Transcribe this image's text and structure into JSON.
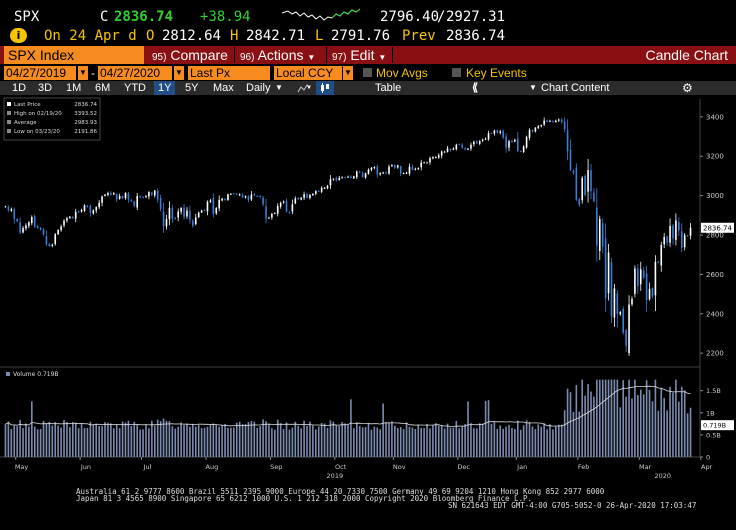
{
  "quote": {
    "ticker": "SPX",
    "last_label": "C",
    "last_value": "2836.74",
    "change": "+38.94",
    "range_low": "2796.40",
    "range_sep": "/",
    "range_high": "2927.31",
    "date_line": "On 24 Apr d",
    "open_label": "O",
    "open_value": "2812.64",
    "high_label": "H",
    "high_value": "2842.71",
    "low_label": "L",
    "low_value": "2791.76",
    "prev_label": "Prev",
    "prev_value": "2836.74",
    "icon_text": "i"
  },
  "titlebar": {
    "index_label": "SPX Index",
    "compare_num": "95)",
    "compare_label": "Compare",
    "actions_num": "96)",
    "actions_label": "Actions",
    "edit_num": "97)",
    "edit_label": "Edit",
    "right_label": "Candle Chart"
  },
  "daterow": {
    "start_date": "04/27/2019",
    "dash": "-",
    "end_date": "04/27/2020",
    "price_field": "Last Px",
    "currency": "Local CCY",
    "mov_avgs": "Mov Avgs",
    "key_events": "Key Events"
  },
  "toolbar": {
    "periods": [
      "1D",
      "3D",
      "1M",
      "6M",
      "YTD",
      "1Y",
      "5Y",
      "Max"
    ],
    "active_period": "1Y",
    "frequency": "Daily",
    "table": "Table",
    "chart_content": "Chart Content"
  },
  "colors": {
    "up": "#ffffff",
    "down": "#3c7fd6",
    "orange": "#f68b1f",
    "titlebar": "#8a0f12",
    "volume": "#7b8bb0"
  },
  "chart_data": {
    "type": "candlestick",
    "legend": {
      "last_price_label": "Last Price",
      "last_price": "2836.74",
      "high_label": "High on 02/19/20",
      "high": "3393.52",
      "average_label": "Average",
      "average": "2983.93",
      "low_label": "Low on 03/23/20",
      "low": "2191.86"
    },
    "y_ticks": [
      "3400",
      "3200",
      "3000",
      "2800",
      "2600",
      "2400",
      "2200"
    ],
    "ylim": [
      2150,
      3450
    ],
    "last_price_tag": "2836.74",
    "x_ticks": [
      "May",
      "Jun",
      "Jul",
      "Aug",
      "Sep",
      "Oct",
      "Nov",
      "Dec",
      "Jan",
      "Feb",
      "Mar",
      "Apr"
    ],
    "year_labels": [
      "2019",
      "2020"
    ],
    "closes": [
      2945,
      2926,
      2932,
      2881,
      2870,
      2812,
      2836,
      2849,
      2864,
      2891,
      2842,
      2835,
      2826,
      2803,
      2752,
      2744,
      2751,
      2804,
      2826,
      2843,
      2873,
      2886,
      2892,
      2886,
      2917,
      2918,
      2927,
      2950,
      2945,
      2913,
      2925,
      2942,
      2964,
      2996,
      3005,
      3013,
      3004,
      3014,
      2981,
      2998,
      2987,
      3014,
      2981,
      2970,
      2948,
      2998,
      2992,
      2991,
      2997,
      3019,
      3003,
      3026,
      2980,
      2932,
      2844,
      2881,
      2938,
      2884,
      2882,
      2919,
      2938,
      2891,
      2924,
      2878,
      2847,
      2889,
      2914,
      2924,
      2922,
      2969,
      2976,
      2906,
      2937,
      2978,
      2985,
      2979,
      3007,
      3009,
      3011,
      3005,
      3007,
      2992,
      2997,
      2977,
      3005,
      3001,
      2997,
      2993,
      2955,
      2884,
      2888,
      2908,
      2911,
      2947,
      2963,
      2970,
      2919,
      2915,
      2956,
      2986,
      2982,
      2990,
      3007,
      2988,
      3004,
      3009,
      3023,
      3023,
      3040,
      3040,
      3050,
      3083,
      3086,
      3078,
      3090,
      3093,
      3091,
      3096,
      3090,
      3098,
      3122,
      3120,
      3094,
      3113,
      3132,
      3141,
      3145,
      3108,
      3115,
      3117,
      3112,
      3147,
      3154,
      3141,
      3154,
      3112,
      3114,
      3117,
      3147,
      3132,
      3136,
      3140,
      3168,
      3169,
      3168,
      3191,
      3195,
      3196,
      3205,
      3224,
      3223,
      3240,
      3231,
      3239,
      3259,
      3260,
      3244,
      3235,
      3238,
      3258,
      3274,
      3265,
      3277,
      3284,
      3289,
      3316,
      3317,
      3330,
      3320,
      3326,
      3295,
      3243,
      3276,
      3273,
      3283,
      3226,
      3225,
      3249,
      3298,
      3334,
      3327,
      3345,
      3352,
      3358,
      3381,
      3374,
      3380,
      3373,
      3380,
      3386,
      3373,
      3338,
      3225,
      3128,
      3116,
      2979,
      2954,
      3090,
      3003,
      3130,
      3023,
      2972,
      2746,
      2882,
      2741,
      2480,
      2711,
      2386,
      2529,
      2398,
      2409,
      2304,
      2237,
      2447,
      2475,
      2630,
      2541,
      2626,
      2584,
      2470,
      2527,
      2488,
      2664,
      2659,
      2749,
      2790,
      2761,
      2846,
      2783,
      2874,
      2823,
      2736,
      2799,
      2797,
      2837
    ],
    "volume_ticks": [
      "1.5B",
      "1B",
      "0.5B",
      "0"
    ],
    "volume_label": "Volume",
    "volume_last": "0.719B"
  },
  "footer": {
    "line1": "Australia 61 2 9777 8600  Brazil 5511 2395 9000  Europe 44 20 7330 7500  Germany 49 69 9204 1210  Hong Kong 852 2977 6000",
    "line2": "Japan 81 3 4565 8900        Singapore 65 6212 1000        U.S. 1 212 318 2000            Copyright 2020 Bloomberg Finance L.P.",
    "line3": "SN 621643 EDT  GMT-4:00 G705-5052-0 26-Apr-2020 17:03:47"
  }
}
